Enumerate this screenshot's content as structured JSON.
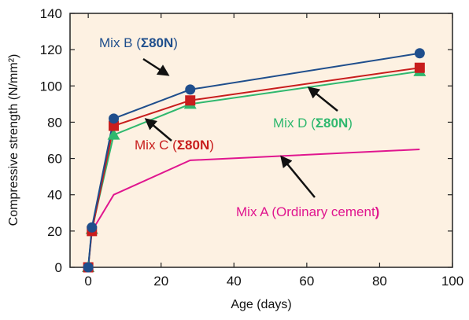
{
  "chart_data": {
    "type": "line",
    "xlabel": "Age (days)",
    "ylabel": "Compressive strength (N/mm²)",
    "xlim": [
      -5,
      100
    ],
    "ylim": [
      0,
      140
    ],
    "xticks": [
      0,
      20,
      40,
      60,
      80,
      100
    ],
    "yticks": [
      0,
      20,
      40,
      60,
      80,
      100,
      120,
      140
    ],
    "grid": false,
    "plot_background": "#fdf1e2",
    "series": [
      {
        "name": "Mix A (Ordinary cement)",
        "label_prefix": "Mix A (Ordinary cement",
        "label_suffix": ")",
        "color": "#e0168f",
        "marker": "none",
        "x": [
          1,
          7,
          28,
          91
        ],
        "y": [
          20,
          40,
          59,
          65
        ]
      },
      {
        "name": "Mix B (Σ80N)",
        "label_prefix": "Mix B (",
        "label_bold": "Σ80N",
        "label_suffix": ")",
        "color": "#1f4e8c",
        "marker": "circle",
        "x": [
          0,
          1,
          7,
          28,
          91
        ],
        "y": [
          0,
          22,
          82,
          98,
          118
        ]
      },
      {
        "name": "Mix C (Σ80N)",
        "label_prefix": "Mix C (",
        "label_bold": "Σ80N",
        "label_suffix": ")",
        "color": "#c81d1d",
        "marker": "square",
        "x": [
          0,
          1,
          7,
          28,
          91
        ],
        "y": [
          0,
          20,
          78,
          92,
          110
        ]
      },
      {
        "name": "Mix D (Σ80N)",
        "label_prefix": "Mix D (",
        "label_bold": "Σ80N",
        "label_suffix": ")",
        "color": "#2fb86e",
        "marker": "triangle",
        "x": [
          0,
          1,
          7,
          28,
          91
        ],
        "y": [
          0,
          21,
          73,
          90,
          108
        ]
      }
    ]
  }
}
